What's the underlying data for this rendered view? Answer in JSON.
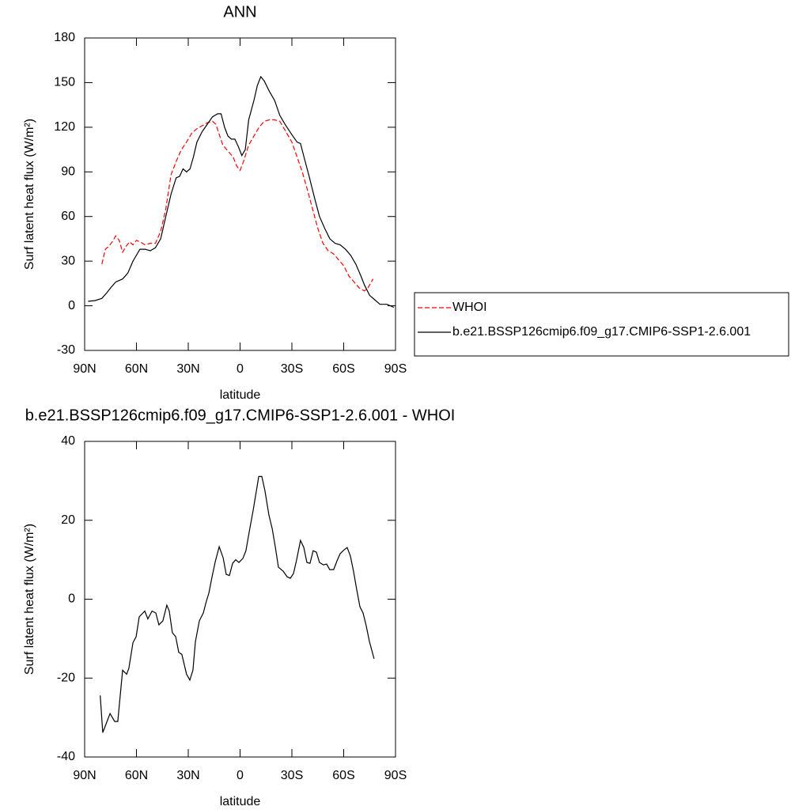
{
  "chart_data": [
    {
      "type": "line",
      "title": "ANN",
      "xlabel": "latitude",
      "ylabel": "Surf latent heat flux (W/m²)",
      "xlim": [
        90,
        -90
      ],
      "xticks": [
        {
          "value": 90,
          "label": "90N"
        },
        {
          "value": 60,
          "label": "60N"
        },
        {
          "value": 30,
          "label": "30N"
        },
        0,
        {
          "value": -30,
          "label": "30S"
        },
        {
          "value": -60,
          "label": "60S"
        },
        {
          "value": -90,
          "label": "90S"
        }
      ],
      "ylim": [
        -30,
        180
      ],
      "yticks": [
        -30,
        0,
        30,
        60,
        90,
        120,
        150,
        180
      ],
      "legend": "outside right",
      "series": [
        {
          "name": "WHOI",
          "color": "#ff0000",
          "dash": "dashed",
          "x": [
            80,
            78,
            76,
            74,
            72,
            70,
            68,
            66,
            64,
            62,
            60,
            58,
            55,
            52,
            49,
            46,
            43,
            40,
            37,
            34,
            31,
            28,
            25,
            22,
            19,
            16,
            14,
            12,
            10,
            7,
            4,
            2,
            0,
            -2,
            -5,
            -8,
            -11,
            -14,
            -17,
            -20,
            -23,
            -26,
            -30,
            -33,
            -36,
            -39,
            -42,
            -45,
            -48,
            -51,
            -54,
            -57,
            -60,
            -63,
            -66,
            -69,
            -72,
            -74,
            -77
          ],
          "values": [
            28,
            38,
            40,
            43,
            47,
            44,
            36,
            40,
            43,
            41,
            44,
            43,
            41,
            42,
            42,
            50,
            65,
            88,
            97,
            105,
            110,
            116,
            119,
            121,
            123,
            124,
            122,
            115,
            108,
            104,
            100,
            94,
            91,
            97,
            108,
            114,
            120,
            124,
            125,
            125,
            124,
            118,
            110,
            100,
            90,
            78,
            65,
            52,
            42,
            37,
            35,
            31,
            27,
            20,
            16,
            12,
            10,
            12,
            18
          ]
        },
        {
          "name": "b.e21.BSSP126cmip6.f09_g17.CMIP6-SSP1-2.6.001",
          "color": "#000000",
          "dash": "solid",
          "x": [
            88,
            84,
            80,
            77,
            75,
            72,
            68,
            65,
            62,
            58,
            55,
            52,
            49,
            46,
            43,
            40,
            37,
            35,
            33,
            31,
            29,
            27,
            25,
            22,
            19,
            16,
            13,
            11,
            9,
            7,
            5,
            3,
            1,
            -1,
            -3,
            -5,
            -8,
            -10,
            -12,
            -14,
            -17,
            -20,
            -23,
            -26,
            -30,
            -33,
            -35,
            -37,
            -40,
            -43,
            -46,
            -49,
            -52,
            -55,
            -58,
            -61,
            -64,
            -67,
            -70,
            -72,
            -75,
            -78,
            -81,
            -85,
            -87,
            -89
          ],
          "values": [
            3,
            3.5,
            5,
            9,
            12,
            16,
            18,
            22,
            30,
            38,
            38,
            37,
            39,
            45,
            60,
            75,
            86,
            87,
            92,
            90,
            92,
            100,
            110,
            117,
            122,
            127,
            129,
            129,
            120,
            114,
            112,
            112,
            107,
            101,
            105,
            125,
            138,
            148,
            154,
            151,
            144,
            138,
            128,
            122,
            115,
            110,
            109,
            100,
            87,
            73,
            60,
            52,
            45,
            42,
            41,
            38,
            34,
            28,
            20,
            14,
            7,
            4,
            1,
            1,
            0,
            -1
          ]
        }
      ]
    },
    {
      "type": "line",
      "title": "b.e21.BSSP126cmip6.f09_g17.CMIP6-SSP1-2.6.001 - WHOI",
      "xlabel": "latitude",
      "ylabel": "Surf latent heat flux (W/m²)",
      "xlim": [
        90,
        -90
      ],
      "xticks": [
        {
          "value": 90,
          "label": "90N"
        },
        {
          "value": 60,
          "label": "60N"
        },
        {
          "value": 30,
          "label": "30N"
        },
        0,
        {
          "value": -30,
          "label": "30S"
        },
        {
          "value": -60,
          "label": "60S"
        },
        {
          "value": -90,
          "label": "90S"
        }
      ],
      "ylim": [
        -40,
        40
      ],
      "yticks": [
        -40,
        -20,
        0,
        20,
        40
      ],
      "color": "#000000",
      "x": [
        81,
        79.5,
        75.3,
        72.6,
        70.8,
        68,
        65.7,
        64.4,
        62,
        60.2,
        58.4,
        55.2,
        53.4,
        51,
        48.8,
        47,
        44.7,
        42.4,
        41,
        39.2,
        37.3,
        35.5,
        33.7,
        31,
        29.1,
        27.3,
        25.9,
        23.6,
        21.3,
        19.5,
        18.1,
        16.3,
        14.4,
        12.1,
        9.8,
        8,
        6.2,
        4.3,
        2.5,
        0.7,
        -1.6,
        -3.4,
        -5.3,
        -7.6,
        -9.4,
        -10.8,
        -12.6,
        -14.4,
        -16.7,
        -18.6,
        -20.4,
        -22.2,
        -25,
        -27.2,
        -29.1,
        -30.9,
        -32.7,
        -35,
        -36.9,
        -38.7,
        -40.5,
        -42.3,
        -44.2,
        -46,
        -48.3,
        -50.1,
        -51.9,
        -54.2,
        -56.1,
        -57.9,
        -60.2,
        -62,
        -63.9,
        -65.7,
        -67.5,
        -69.4,
        -71.2,
        -73,
        -74.9,
        -77.6
      ],
      "values": [
        -24.4,
        -33.8,
        -29,
        -31,
        -31,
        -18,
        -19,
        -17.5,
        -11,
        -9.5,
        -4.5,
        -3,
        -5,
        -3,
        -3.5,
        -6.5,
        -5.5,
        -1.5,
        -3,
        -8.5,
        -9.5,
        -13.5,
        -14,
        -19,
        -20.5,
        -18,
        -10.8,
        -5.5,
        -3.5,
        -0.5,
        1.5,
        5.5,
        9.5,
        13.3,
        10.5,
        6.3,
        6,
        9.1,
        10,
        9.3,
        10.3,
        12.3,
        17.1,
        22.6,
        27.3,
        31.1,
        31.1,
        27.5,
        21.3,
        17.9,
        13.3,
        8.1,
        7.1,
        5.7,
        5.3,
        6.5,
        9.9,
        14.9,
        13.1,
        9.3,
        9.1,
        12.3,
        11.9,
        9.3,
        8.7,
        8.9,
        7.5,
        7.5,
        9.7,
        11.5,
        12.5,
        13.1,
        10.9,
        7.1,
        2.5,
        -1.9,
        -3.5,
        -6.7,
        -10.7,
        -15.1
      ]
    }
  ]
}
